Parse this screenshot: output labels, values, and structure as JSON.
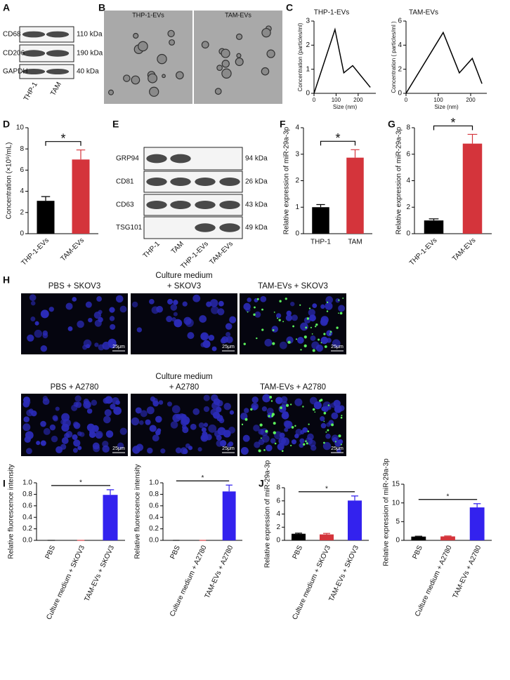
{
  "panel_labels": [
    "A",
    "B",
    "C",
    "D",
    "E",
    "F",
    "G",
    "H",
    "I",
    "J"
  ],
  "blots": [
    {
      "rows": [
        {
          "protein": "CD68",
          "size": "110 kDa"
        },
        {
          "protein": "CD206",
          "size": "190 kDa"
        },
        {
          "protein": "GAPDH",
          "size": "40 kDa"
        }
      ],
      "lanes": [
        "THP-1",
        "TAM"
      ]
    },
    {
      "rows": [
        {
          "protein": "GRP94",
          "size": "94 kDa"
        },
        {
          "protein": "CD81",
          "size": "26 kDa"
        },
        {
          "protein": "CD63",
          "size": "43 kDa"
        },
        {
          "protein": "TSG101",
          "size": "49 kDa"
        }
      ],
      "lanes": [
        "THP-1",
        "TAM",
        "THP-1-EVs",
        "TAM-EVs"
      ]
    }
  ],
  "em_images": [
    "THP-1-EVs",
    "TAM-EVs"
  ],
  "fluorescence": [
    {
      "titles": [
        [
          "PBS + SKOV3"
        ],
        [
          "Culture medium",
          "+ SKOV3"
        ],
        [
          "TAM-EVs + SKOV3"
        ]
      ],
      "scale_bars": [
        "25μm",
        "25μm",
        "25μm"
      ]
    },
    {
      "titles": [
        [
          "PBS + A2780"
        ],
        [
          "Culture medium",
          "+ A2780"
        ],
        [
          "TAM-EVs + A2780"
        ]
      ],
      "scale_bars": [
        "25μm",
        "25μm",
        "25μm"
      ]
    }
  ],
  "chart_data": [
    {
      "type": "line",
      "title": "THP-1-EVs",
      "xlabel": "Size (nm)",
      "ylabel": "Concentration (particles/ml)",
      "x": [
        0,
        95,
        135,
        175,
        255
      ],
      "values": [
        0,
        2.65,
        0.85,
        1.15,
        0.25
      ],
      "color": "#000000",
      "xlim": [
        0,
        280
      ],
      "ylim": [
        0,
        3
      ],
      "xticks": [
        0,
        100,
        200
      ],
      "yticks": [
        0,
        1,
        2,
        3
      ]
    },
    {
      "type": "line",
      "title": "TAM-EVs",
      "xlabel": "Size (nm)",
      "ylabel": "Concentration ( particles/ml )",
      "x": [
        0,
        115,
        165,
        205,
        235
      ],
      "values": [
        0,
        5.05,
        1.7,
        2.9,
        0.8
      ],
      "color": "#000000",
      "xlim": [
        0,
        250
      ],
      "ylim": [
        0,
        6
      ],
      "xticks": [
        0,
        100,
        200
      ],
      "yticks": [
        0,
        2,
        4,
        6
      ]
    },
    {
      "type": "bar",
      "ylabel": "Concentration (×10⁹/mL)",
      "categories": [
        "THP-1-EVs",
        "TAM-EVs"
      ],
      "values": [
        3.1,
        7.0
      ],
      "errors": [
        0.4,
        0.9
      ],
      "colors": [
        "#000000",
        "#d4343b"
      ],
      "ylim": [
        0,
        10
      ],
      "yticks": [
        0,
        2,
        4,
        6,
        8,
        10
      ],
      "significance": "*"
    },
    {
      "type": "bar",
      "ylabel": "Relative expression of miR-29a-3p",
      "categories": [
        "THP-1",
        "TAM"
      ],
      "values": [
        1.0,
        2.87
      ],
      "errors": [
        0.1,
        0.3
      ],
      "colors": [
        "#000000",
        "#d4343b"
      ],
      "ylim": [
        0,
        4
      ],
      "yticks": [
        0,
        1,
        2,
        3,
        4
      ],
      "significance": "*"
    },
    {
      "type": "bar",
      "ylabel": "Relative expression of miR-29a-3p",
      "categories": [
        "THP-1-EVs",
        "TAM-EVs"
      ],
      "values": [
        1.0,
        6.8
      ],
      "errors": [
        0.12,
        0.7
      ],
      "colors": [
        "#000000",
        "#d4343b"
      ],
      "ylim": [
        0,
        8
      ],
      "yticks": [
        0,
        2,
        4,
        6,
        8
      ],
      "significance": "*"
    },
    {
      "type": "bar",
      "ylabel": "Relative fluorescence intensity",
      "categories": [
        "PBS",
        "Culture  medium + SKOV3",
        "TAM-EVs + SKOV3"
      ],
      "values": [
        0,
        0,
        0.79
      ],
      "errors": [
        0,
        0,
        0.09
      ],
      "colors": [
        "#000000",
        "#d4343b",
        "#3322ee"
      ],
      "ylim": [
        0,
        1
      ],
      "yticks": [
        {
          "value": 0,
          "label": "0.0"
        },
        0.2,
        0.4,
        0.6,
        0.8,
        {
          "value": 1,
          "label": "1.0"
        }
      ],
      "significance": "*"
    },
    {
      "type": "bar",
      "ylabel": "Relative fluorescence intensity",
      "categories": [
        "PBS",
        "Culture medium + A2780",
        "TAM-EVs + A2780"
      ],
      "values": [
        0,
        0,
        0.85
      ],
      "errors": [
        0,
        0,
        0.11
      ],
      "colors": [
        "#000000",
        "#d4343b",
        "#3322ee"
      ],
      "ylim": [
        0,
        1
      ],
      "yticks": [
        {
          "value": 0,
          "label": "0.0"
        },
        0.2,
        0.4,
        0.6,
        0.8,
        {
          "value": 1,
          "label": "1.0"
        }
      ],
      "significance": "*"
    },
    {
      "type": "bar",
      "ylabel": "Relative expression of miR-29a-3p",
      "categories": [
        "PBS",
        "Culture  medium + SKOV3",
        "TAM-EVs + SKOV3"
      ],
      "values": [
        1.0,
        0.9,
        6.05
      ],
      "errors": [
        0.1,
        0.15,
        0.7
      ],
      "colors": [
        "#000000",
        "#d4343b",
        "#3322ee"
      ],
      "ylim": [
        0,
        8
      ],
      "yticks": [
        0,
        2,
        4,
        6,
        8
      ],
      "significance": "*"
    },
    {
      "type": "bar",
      "ylabel": "Relative expression of miR-29a-3p",
      "categories": [
        "PBS",
        "Culture medium + A2780",
        "TAM-EVs + A2780"
      ],
      "values": [
        1.0,
        1.05,
        8.8
      ],
      "errors": [
        0.1,
        0.12,
        1.0
      ],
      "colors": [
        "#000000",
        "#d4343b",
        "#3322ee"
      ],
      "ylim": [
        0,
        15
      ],
      "yticks": [
        0,
        5,
        10,
        15
      ],
      "significance": "*"
    }
  ]
}
